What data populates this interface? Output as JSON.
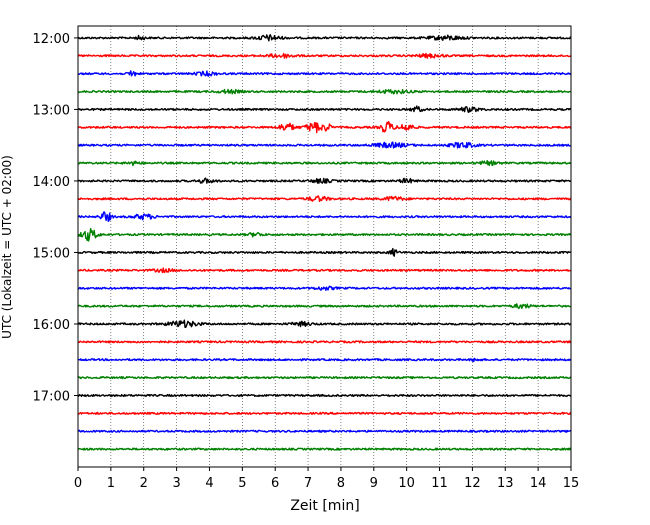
{
  "chart_data": {
    "type": "line",
    "title": "",
    "xlabel": "Zeit  [min]",
    "ylabel": "UTC (Lokalzeit = UTC + 02:00)",
    "xlim": [
      0,
      15
    ],
    "x_ticks": [
      "0",
      "1",
      "2",
      "3",
      "4",
      "5",
      "6",
      "7",
      "8",
      "9",
      "10",
      "11",
      "12",
      "13",
      "14",
      "15"
    ],
    "ylim_minutes_utc": [
      710,
      1080
    ],
    "y_ticks": [
      {
        "value": 720,
        "label": "12:00"
      },
      {
        "value": 780,
        "label": "13:00"
      },
      {
        "value": 840,
        "label": "14:00"
      },
      {
        "value": 900,
        "label": "15:00"
      },
      {
        "value": 960,
        "label": "16:00"
      },
      {
        "value": 1020,
        "label": "17:00"
      }
    ],
    "grid_x": true,
    "trace_interval_minutes": 15,
    "trace_colors": [
      "#000000",
      "#ff0000",
      "#0000ff",
      "#008000"
    ],
    "series": [
      {
        "start": "12:00",
        "bursts": [
          {
            "x": 1.9,
            "a": 2.0,
            "w": 0.12
          },
          {
            "x": 5.8,
            "a": 2.6,
            "w": 0.35
          },
          {
            "x": 11.2,
            "a": 2.0,
            "w": 0.5
          }
        ]
      },
      {
        "start": "12:15",
        "bursts": [
          {
            "x": 6.2,
            "a": 1.8,
            "w": 0.4
          },
          {
            "x": 10.7,
            "a": 1.6,
            "w": 0.4
          }
        ]
      },
      {
        "start": "12:30",
        "bursts": [
          {
            "x": 1.65,
            "a": 3.6,
            "w": 0.1
          },
          {
            "x": 3.9,
            "a": 1.8,
            "w": 0.3
          }
        ]
      },
      {
        "start": "12:45",
        "bursts": [
          {
            "x": 4.6,
            "a": 1.6,
            "w": 0.3
          },
          {
            "x": 9.6,
            "a": 1.5,
            "w": 0.5
          }
        ]
      },
      {
        "start": "13:00",
        "bursts": [
          {
            "x": 10.3,
            "a": 2.8,
            "w": 0.15
          },
          {
            "x": 11.9,
            "a": 2.2,
            "w": 0.3
          }
        ]
      },
      {
        "start": "13:15",
        "bursts": [
          {
            "x": 6.35,
            "a": 4.0,
            "w": 0.22
          },
          {
            "x": 7.2,
            "a": 5.0,
            "w": 0.25
          },
          {
            "x": 7.6,
            "a": 4.5,
            "w": 0.08
          },
          {
            "x": 9.4,
            "a": 5.6,
            "w": 0.18
          },
          {
            "x": 10.0,
            "a": 3.6,
            "w": 0.2
          }
        ]
      },
      {
        "start": "13:30",
        "bursts": [
          {
            "x": 9.5,
            "a": 2.2,
            "w": 0.5
          },
          {
            "x": 11.7,
            "a": 2.6,
            "w": 0.35
          }
        ]
      },
      {
        "start": "13:45",
        "bursts": [
          {
            "x": 1.7,
            "a": 1.6,
            "w": 0.2
          },
          {
            "x": 12.5,
            "a": 1.6,
            "w": 0.3
          }
        ]
      },
      {
        "start": "14:00",
        "bursts": [
          {
            "x": 3.9,
            "a": 2.0,
            "w": 0.25
          },
          {
            "x": 7.4,
            "a": 1.8,
            "w": 0.3
          },
          {
            "x": 10.0,
            "a": 2.0,
            "w": 0.2
          }
        ]
      },
      {
        "start": "14:15",
        "bursts": [
          {
            "x": 7.3,
            "a": 2.2,
            "w": 0.3
          },
          {
            "x": 9.6,
            "a": 1.8,
            "w": 0.3
          }
        ]
      },
      {
        "start": "14:30",
        "bursts": [
          {
            "x": 0.85,
            "a": 5.0,
            "w": 0.15
          },
          {
            "x": 2.0,
            "a": 2.4,
            "w": 0.3
          }
        ]
      },
      {
        "start": "14:45",
        "bursts": [
          {
            "x": 0.35,
            "a": 5.8,
            "w": 0.22
          },
          {
            "x": 5.4,
            "a": 1.8,
            "w": 0.2
          }
        ]
      },
      {
        "start": "15:00",
        "bursts": [
          {
            "x": 9.6,
            "a": 3.2,
            "w": 0.12
          }
        ]
      },
      {
        "start": "15:15",
        "bursts": [
          {
            "x": 2.6,
            "a": 1.4,
            "w": 0.3
          }
        ]
      },
      {
        "start": "15:30",
        "bursts": [
          {
            "x": 7.5,
            "a": 1.4,
            "w": 0.3
          }
        ]
      },
      {
        "start": "15:45",
        "bursts": [
          {
            "x": 13.5,
            "a": 2.0,
            "w": 0.25
          }
        ]
      },
      {
        "start": "16:00",
        "bursts": [
          {
            "x": 3.2,
            "a": 3.0,
            "w": 0.45
          },
          {
            "x": 6.8,
            "a": 1.8,
            "w": 0.3
          }
        ]
      },
      {
        "start": "16:15",
        "bursts": []
      },
      {
        "start": "16:30",
        "bursts": [
          {
            "x": 12.1,
            "a": 1.8,
            "w": 0.1
          }
        ]
      },
      {
        "start": "16:45",
        "bursts": []
      },
      {
        "start": "17:00",
        "bursts": []
      },
      {
        "start": "17:15",
        "bursts": []
      },
      {
        "start": "17:30",
        "bursts": []
      },
      {
        "start": "17:45",
        "bursts": []
      }
    ]
  }
}
